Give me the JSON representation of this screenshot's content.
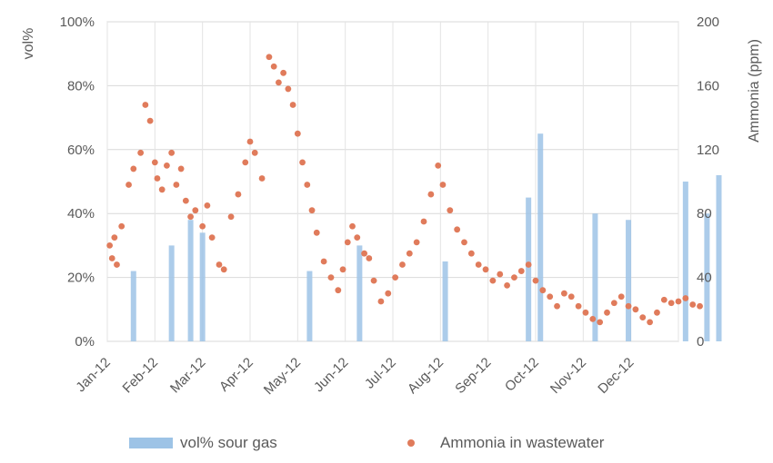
{
  "chart_data": {
    "type": "bar+scatter",
    "x_labels": [
      "Jan-12",
      "Feb-12",
      "Mar-12",
      "Apr-12",
      "May-12",
      "Jun-12",
      "Jul-12",
      "Aug-12",
      "Sep-12",
      "Oct-12",
      "Nov-12",
      "Dec-12"
    ],
    "y_left": {
      "title": "vol%",
      "ticks": [
        "0%",
        "20%",
        "40%",
        "60%",
        "80%",
        "100%"
      ],
      "range": [
        0,
        100
      ]
    },
    "y_right": {
      "title": "Ammonia (ppm)",
      "ticks": [
        "0",
        "40",
        "80",
        "120",
        "160",
        "200"
      ],
      "range": [
        0,
        200
      ]
    },
    "grid": true,
    "legend_position": "bottom",
    "series": [
      {
        "name": "vol% sour gas",
        "kind": "bar",
        "axis": "left",
        "color": "#9dc3e6",
        "points": [
          [
            0.55,
            22
          ],
          [
            1.35,
            30
          ],
          [
            1.75,
            38
          ],
          [
            2.0,
            34
          ],
          [
            4.25,
            22
          ],
          [
            5.3,
            30
          ],
          [
            7.1,
            25
          ],
          [
            8.85,
            45
          ],
          [
            9.1,
            65
          ],
          [
            10.25,
            40
          ],
          [
            10.95,
            38
          ],
          [
            12.15,
            50
          ],
          [
            12.6,
            40
          ],
          [
            12.85,
            52
          ]
        ]
      },
      {
        "name": "Ammonia in wastewater",
        "kind": "scatter",
        "axis": "right",
        "color": "#e07b5b",
        "points": [
          [
            0.05,
            60
          ],
          [
            0.1,
            52
          ],
          [
            0.15,
            65
          ],
          [
            0.2,
            48
          ],
          [
            0.3,
            72
          ],
          [
            0.45,
            98
          ],
          [
            0.55,
            108
          ],
          [
            0.7,
            118
          ],
          [
            0.8,
            148
          ],
          [
            0.9,
            138
          ],
          [
            1.0,
            112
          ],
          [
            1.05,
            102
          ],
          [
            1.15,
            95
          ],
          [
            1.25,
            110
          ],
          [
            1.35,
            118
          ],
          [
            1.45,
            98
          ],
          [
            1.55,
            108
          ],
          [
            1.65,
            88
          ],
          [
            1.75,
            78
          ],
          [
            1.85,
            82
          ],
          [
            2.0,
            72
          ],
          [
            2.1,
            85
          ],
          [
            2.2,
            65
          ],
          [
            2.35,
            48
          ],
          [
            2.45,
            45
          ],
          [
            2.6,
            78
          ],
          [
            2.75,
            92
          ],
          [
            2.9,
            112
          ],
          [
            3.0,
            125
          ],
          [
            3.1,
            118
          ],
          [
            3.25,
            102
          ],
          [
            3.4,
            178
          ],
          [
            3.5,
            172
          ],
          [
            3.6,
            162
          ],
          [
            3.7,
            168
          ],
          [
            3.8,
            158
          ],
          [
            3.9,
            148
          ],
          [
            4.0,
            130
          ],
          [
            4.1,
            112
          ],
          [
            4.2,
            98
          ],
          [
            4.3,
            82
          ],
          [
            4.4,
            68
          ],
          [
            4.55,
            50
          ],
          [
            4.7,
            40
          ],
          [
            4.85,
            32
          ],
          [
            4.95,
            45
          ],
          [
            5.05,
            62
          ],
          [
            5.15,
            72
          ],
          [
            5.25,
            65
          ],
          [
            5.4,
            55
          ],
          [
            5.5,
            52
          ],
          [
            5.6,
            38
          ],
          [
            5.75,
            25
          ],
          [
            5.9,
            30
          ],
          [
            6.05,
            40
          ],
          [
            6.2,
            48
          ],
          [
            6.35,
            55
          ],
          [
            6.5,
            62
          ],
          [
            6.65,
            75
          ],
          [
            6.8,
            92
          ],
          [
            6.95,
            110
          ],
          [
            7.05,
            98
          ],
          [
            7.2,
            82
          ],
          [
            7.35,
            70
          ],
          [
            7.5,
            62
          ],
          [
            7.65,
            55
          ],
          [
            7.8,
            48
          ],
          [
            7.95,
            45
          ],
          [
            8.1,
            38
          ],
          [
            8.25,
            42
          ],
          [
            8.4,
            35
          ],
          [
            8.55,
            40
          ],
          [
            8.7,
            44
          ],
          [
            8.85,
            48
          ],
          [
            9.0,
            38
          ],
          [
            9.15,
            32
          ],
          [
            9.3,
            28
          ],
          [
            9.45,
            22
          ],
          [
            9.6,
            30
          ],
          [
            9.75,
            28
          ],
          [
            9.9,
            22
          ],
          [
            10.05,
            18
          ],
          [
            10.2,
            14
          ],
          [
            10.35,
            12
          ],
          [
            10.5,
            18
          ],
          [
            10.65,
            24
          ],
          [
            10.8,
            28
          ],
          [
            10.95,
            22
          ],
          [
            11.1,
            20
          ],
          [
            11.25,
            15
          ],
          [
            11.4,
            12
          ],
          [
            11.55,
            18
          ],
          [
            11.7,
            26
          ],
          [
            11.85,
            24
          ],
          [
            12.0,
            25
          ],
          [
            12.15,
            27
          ],
          [
            12.3,
            23
          ],
          [
            12.45,
            22
          ]
        ]
      }
    ]
  }
}
